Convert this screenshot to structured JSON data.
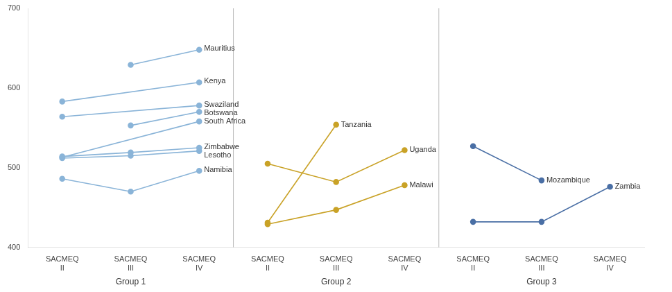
{
  "chart_data": {
    "type": "line",
    "marker": "circle",
    "grid": false,
    "categories": [
      "SACMEQ\nII",
      "SACMEQ\nIII",
      "SACMEQ\nIV",
      "SACMEQ\nII",
      "SACMEQ\nIII",
      "SACMEQ\nIV",
      "SACMEQ\nII",
      "SACMEQ\nIII",
      "SACMEQ\nIV"
    ],
    "ylim": [
      400,
      700
    ],
    "yticks": [
      400,
      500,
      600,
      700
    ],
    "groups": [
      {
        "name": "Group 1",
        "series": [
          {
            "name": "Mauritius",
            "color": "#8ab4d8",
            "values": [
              null,
              629,
              648,
              null,
              null,
              null,
              null,
              null,
              null
            ]
          },
          {
            "name": "Kenya",
            "color": "#8ab4d8",
            "values": [
              583,
              null,
              607,
              null,
              null,
              null,
              null,
              null,
              null
            ]
          },
          {
            "name": "Swaziland",
            "color": "#8ab4d8",
            "values": [
              564,
              null,
              578,
              null,
              null,
              null,
              null,
              null,
              null
            ]
          },
          {
            "name": "Botswana",
            "color": "#8ab4d8",
            "values": [
              null,
              553,
              570,
              null,
              null,
              null,
              null,
              null,
              null
            ]
          },
          {
            "name": "South Africa",
            "color": "#8ab4d8",
            "values": [
              513,
              null,
              558,
              null,
              null,
              null,
              null,
              null,
              null
            ]
          },
          {
            "name": "Zimbabwe",
            "color": "#8ab4d8",
            "values": [
              514,
              519,
              525,
              null,
              null,
              null,
              null,
              null,
              null
            ]
          },
          {
            "name": "Lesotho",
            "color": "#8ab4d8",
            "values": [
              512,
              515,
              521,
              null,
              null,
              null,
              null,
              null,
              null
            ]
          },
          {
            "name": "Namibia",
            "color": "#8ab4d8",
            "values": [
              486,
              470,
              496,
              null,
              null,
              null,
              null,
              null,
              null
            ]
          }
        ]
      },
      {
        "name": "Group 2",
        "series": [
          {
            "name": "Tanzania",
            "color": "#c9a227",
            "values": [
              null,
              null,
              null,
              431,
              554,
              null,
              null,
              null,
              null
            ]
          },
          {
            "name": "Uganda",
            "color": "#c9a227",
            "values": [
              null,
              null,
              null,
              505,
              482,
              522,
              null,
              null,
              null
            ]
          },
          {
            "name": "Malawi",
            "color": "#c9a227",
            "values": [
              null,
              null,
              null,
              429,
              447,
              478,
              null,
              null,
              null
            ]
          }
        ]
      },
      {
        "name": "Group 3",
        "series": [
          {
            "name": "Mozambique",
            "color": "#4a6fa5",
            "values": [
              null,
              null,
              null,
              null,
              null,
              null,
              527,
              484,
              null
            ]
          },
          {
            "name": "Zambia",
            "color": "#4a6fa5",
            "values": [
              null,
              null,
              null,
              null,
              null,
              null,
              432,
              432,
              476
            ]
          }
        ]
      }
    ]
  }
}
